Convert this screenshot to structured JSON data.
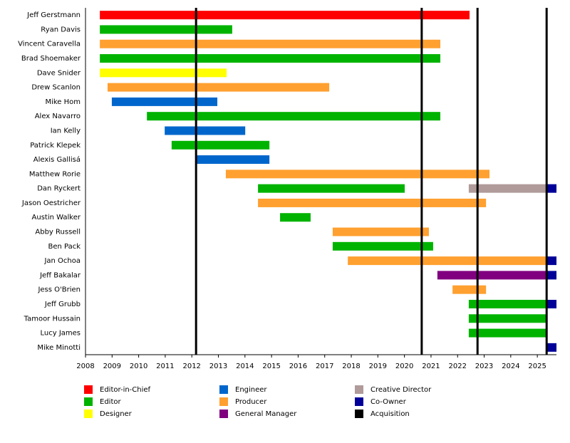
{
  "chart_data": {
    "type": "timeline",
    "xlim": [
      2008,
      2025.72
    ],
    "xticks": [
      2008,
      2009,
      2010,
      2011,
      2012,
      2013,
      2014,
      2015,
      2016,
      2017,
      2018,
      2019,
      2020,
      2021,
      2022,
      2023,
      2024,
      2025
    ],
    "series": [
      {
        "name": "Editor-in-Chief",
        "color": "#ff0000"
      },
      {
        "name": "Editor",
        "color": "#00b300"
      },
      {
        "name": "Designer",
        "color": "#ffff00"
      },
      {
        "name": "Engineer",
        "color": "#0066cc"
      },
      {
        "name": "Producer",
        "color": "#ffa030"
      },
      {
        "name": "General Manager",
        "color": "#800080"
      },
      {
        "name": "Creative Director",
        "color": "#b09a9a"
      },
      {
        "name": "Co-Owner",
        "color": "#000099"
      },
      {
        "name": "Acquisition",
        "color": "#000000"
      }
    ],
    "markers": {
      "series": "Acquisition",
      "x": [
        2012.16,
        2020.65,
        2022.75,
        2025.35
      ]
    },
    "rows": [
      {
        "name": "Jeff Gerstmann",
        "spans": [
          {
            "role": "Editor-in-Chief",
            "start": 2008.54,
            "end": 2022.45
          }
        ]
      },
      {
        "name": "Ryan Davis",
        "spans": [
          {
            "role": "Editor",
            "start": 2008.54,
            "end": 2013.52
          }
        ]
      },
      {
        "name": "Vincent Caravella",
        "spans": [
          {
            "role": "Producer",
            "start": 2008.54,
            "end": 2021.35
          }
        ]
      },
      {
        "name": "Brad Shoemaker",
        "spans": [
          {
            "role": "Editor",
            "start": 2008.54,
            "end": 2021.35
          }
        ]
      },
      {
        "name": "Dave Snider",
        "spans": [
          {
            "role": "Designer",
            "start": 2008.54,
            "end": 2013.31
          }
        ]
      },
      {
        "name": "Drew Scanlon",
        "spans": [
          {
            "role": "Producer",
            "start": 2008.83,
            "end": 2017.17
          }
        ]
      },
      {
        "name": "Mike Hom",
        "spans": [
          {
            "role": "Engineer",
            "start": 2008.99,
            "end": 2012.96
          }
        ]
      },
      {
        "name": "Alex Navarro",
        "spans": [
          {
            "role": "Editor",
            "start": 2010.31,
            "end": 2021.35
          }
        ]
      },
      {
        "name": "Ian Kelly",
        "spans": [
          {
            "role": "Engineer",
            "start": 2010.98,
            "end": 2014.01
          }
        ]
      },
      {
        "name": "Patrick Klepek",
        "spans": [
          {
            "role": "Editor",
            "start": 2011.24,
            "end": 2014.92
          }
        ]
      },
      {
        "name": "Alexis Gallisá",
        "spans": [
          {
            "role": "Engineer",
            "start": 2012.16,
            "end": 2014.92
          }
        ]
      },
      {
        "name": "Matthew Rorie",
        "spans": [
          {
            "role": "Producer",
            "start": 2013.28,
            "end": 2023.2
          }
        ]
      },
      {
        "name": "Dan Ryckert",
        "spans": [
          {
            "role": "Editor",
            "start": 2014.49,
            "end": 2020.01
          },
          {
            "role": "Creative Director",
            "start": 2022.42,
            "end": 2025.35
          },
          {
            "role": "Co-Owner",
            "start": 2025.35,
            "end": 2025.72
          }
        ]
      },
      {
        "name": "Jason Oestricher",
        "spans": [
          {
            "role": "Producer",
            "start": 2014.49,
            "end": 2023.07
          }
        ]
      },
      {
        "name": "Austin Walker",
        "spans": [
          {
            "role": "Editor",
            "start": 2015.32,
            "end": 2016.47
          }
        ]
      },
      {
        "name": "Abby Russell",
        "spans": [
          {
            "role": "Producer",
            "start": 2017.3,
            "end": 2020.92
          }
        ]
      },
      {
        "name": "Ben Pack",
        "spans": [
          {
            "role": "Editor",
            "start": 2017.3,
            "end": 2021.08
          }
        ]
      },
      {
        "name": "Jan Ochoa",
        "spans": [
          {
            "role": "Producer",
            "start": 2017.87,
            "end": 2025.35
          },
          {
            "role": "Co-Owner",
            "start": 2025.35,
            "end": 2025.72
          }
        ]
      },
      {
        "name": "Jeff Bakalar",
        "spans": [
          {
            "role": "General Manager",
            "start": 2021.24,
            "end": 2025.35
          },
          {
            "role": "Co-Owner",
            "start": 2025.35,
            "end": 2025.72
          }
        ]
      },
      {
        "name": "Jess O'Brien",
        "spans": [
          {
            "role": "Producer",
            "start": 2021.81,
            "end": 2023.07
          }
        ]
      },
      {
        "name": "Jeff Grubb",
        "spans": [
          {
            "role": "Editor",
            "start": 2022.42,
            "end": 2025.35
          },
          {
            "role": "Co-Owner",
            "start": 2025.35,
            "end": 2025.72
          }
        ]
      },
      {
        "name": "Tamoor Hussain",
        "spans": [
          {
            "role": "Editor",
            "start": 2022.42,
            "end": 2025.35
          }
        ]
      },
      {
        "name": "Lucy James",
        "spans": [
          {
            "role": "Editor",
            "start": 2022.42,
            "end": 2025.35
          }
        ]
      },
      {
        "name": "Mike Minotti",
        "spans": [
          {
            "role": "Co-Owner",
            "start": 2025.35,
            "end": 2025.72
          }
        ]
      }
    ]
  }
}
